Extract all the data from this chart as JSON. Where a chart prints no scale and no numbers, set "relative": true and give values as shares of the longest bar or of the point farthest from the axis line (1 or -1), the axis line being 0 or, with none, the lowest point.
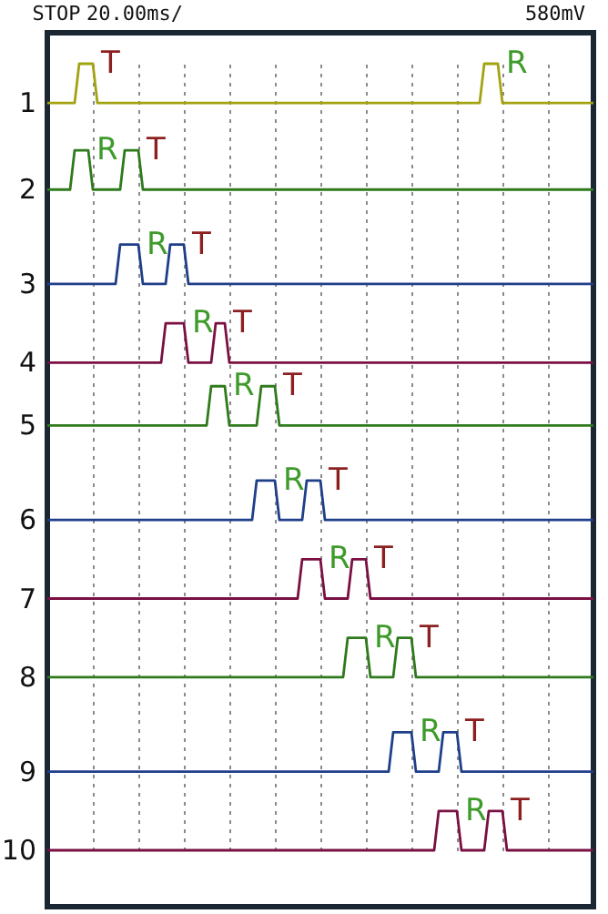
{
  "chart_data": {
    "type": "line",
    "relative": true,
    "grid": "x",
    "line_style": "solid",
    "categories": [
      null,
      null,
      null,
      null,
      null,
      null,
      null,
      null,
      null,
      null,
      null,
      null,
      null,
      null,
      null,
      null,
      null,
      null,
      null,
      null,
      null,
      null,
      null,
      null,
      null,
      null,
      null,
      null,
      null,
      null,
      null,
      null,
      null,
      null,
      null,
      null,
      null,
      null,
      null,
      null,
      null,
      null,
      null,
      null,
      null,
      null,
      null,
      null,
      null,
      null,
      null,
      null,
      null,
      null,
      null,
      null,
      null,
      null,
      null,
      null,
      null,
      null,
      null,
      null,
      null,
      null,
      null,
      null,
      null,
      null,
      null,
      null,
      null,
      null,
      null,
      null,
      null,
      null,
      null,
      null,
      null,
      null,
      null,
      null,
      null,
      null,
      null,
      null,
      null,
      null,
      null,
      null,
      null,
      null,
      null,
      null,
      null,
      null,
      null,
      null,
      null,
      null,
      null,
      null,
      null,
      null,
      null,
      null,
      null,
      null,
      null,
      null,
      null,
      null,
      null,
      null,
      null,
      null,
      null,
      null,
      null
    ],
    "series": [
      {
        "name": "1",
        "color": "#a3a312",
        "values": [
          0.95,
          0.95,
          0.95,
          0.95,
          0.95,
          0.95,
          0.95,
          1.0,
          1.0,
          1.0,
          1.0,
          0.95,
          0.95,
          0.95,
          0.95,
          0.95,
          0.95,
          0.95,
          0.95,
          0.95,
          0.95,
          0.95,
          0.95,
          0.95,
          0.95,
          0.95,
          0.95,
          0.95,
          0.95,
          0.95,
          0.95,
          0.95,
          0.95,
          0.95,
          0.95,
          0.95,
          0.95,
          0.95,
          0.95,
          0.95,
          0.95,
          0.95,
          0.95,
          0.95,
          0.95,
          0.95,
          0.95,
          0.95,
          0.95,
          0.95,
          0.95,
          0.95,
          0.95,
          0.95,
          0.95,
          0.95,
          0.95,
          0.95,
          0.95,
          0.95,
          0.95,
          0.95,
          0.95,
          0.95,
          0.95,
          0.95,
          0.95,
          0.95,
          0.95,
          0.95,
          0.95,
          0.95,
          0.95,
          0.95,
          0.95,
          0.95,
          0.95,
          0.95,
          0.95,
          0.95,
          0.95,
          0.95,
          0.95,
          0.95,
          0.95,
          0.95,
          0.95,
          0.95,
          0.95,
          0.95,
          0.95,
          0.95,
          0.95,
          0.95,
          0.95,
          0.95,
          1.0,
          1.0,
          1.0,
          1.0,
          0.95,
          0.95,
          0.95,
          0.95,
          0.95,
          0.95,
          0.95,
          0.95,
          0.95,
          0.95,
          0.95,
          0.95,
          0.95,
          0.95,
          0.95,
          0.95,
          0.95,
          0.95,
          0.95,
          0.95,
          0.95
        ]
      },
      {
        "name": "2",
        "color": "#2f7a1c",
        "values": [
          0.84,
          0.84,
          0.84,
          0.84,
          0.84,
          0.84,
          0.89,
          0.89,
          0.89,
          0.89,
          0.84,
          0.84,
          0.84,
          0.84,
          0.84,
          0.84,
          0.84,
          0.89,
          0.89,
          0.89,
          0.89,
          0.84,
          0.84,
          0.84,
          0.84,
          0.84,
          0.84,
          0.84,
          0.84,
          0.84,
          0.84,
          0.84,
          0.84,
          0.84,
          0.84,
          0.84,
          0.84,
          0.84,
          0.84,
          0.84,
          0.84,
          0.84,
          0.84,
          0.84,
          0.84,
          0.84,
          0.84,
          0.84,
          0.84,
          0.84,
          0.84,
          0.84,
          0.84,
          0.84,
          0.84,
          0.84,
          0.84,
          0.84,
          0.84,
          0.84,
          0.84,
          0.84,
          0.84,
          0.84,
          0.84,
          0.84,
          0.84,
          0.84,
          0.84,
          0.84,
          0.84,
          0.84,
          0.84,
          0.84,
          0.84,
          0.84,
          0.84,
          0.84,
          0.84,
          0.84,
          0.84,
          0.84,
          0.84,
          0.84,
          0.84,
          0.84,
          0.84,
          0.84,
          0.84,
          0.84,
          0.84,
          0.84,
          0.84,
          0.84,
          0.84,
          0.84,
          0.84,
          0.84,
          0.84,
          0.84,
          0.84,
          0.84,
          0.84,
          0.84,
          0.84,
          0.84,
          0.84,
          0.84,
          0.84,
          0.84,
          0.84,
          0.84,
          0.84,
          0.84,
          0.84,
          0.84,
          0.84,
          0.84,
          0.84,
          0.84,
          0.84
        ]
      },
      {
        "name": "3",
        "color": "#1f3f8a",
        "values": [
          0.72,
          0.72,
          0.72,
          0.72,
          0.72,
          0.72,
          0.72,
          0.72,
          0.72,
          0.72,
          0.72,
          0.72,
          0.72,
          0.72,
          0.72,
          0.72,
          0.77,
          0.77,
          0.77,
          0.77,
          0.77,
          0.72,
          0.72,
          0.72,
          0.72,
          0.72,
          0.72,
          0.77,
          0.77,
          0.77,
          0.77,
          0.72,
          0.72,
          0.72,
          0.72,
          0.72,
          0.72,
          0.72,
          0.72,
          0.72,
          0.72,
          0.72,
          0.72,
          0.72,
          0.72,
          0.72,
          0.72,
          0.72,
          0.72,
          0.72,
          0.72,
          0.72,
          0.72,
          0.72,
          0.72,
          0.72,
          0.72,
          0.72,
          0.72,
          0.72,
          0.72,
          0.72,
          0.72,
          0.72,
          0.72,
          0.72,
          0.72,
          0.72,
          0.72,
          0.72,
          0.72,
          0.72,
          0.72,
          0.72,
          0.72,
          0.72,
          0.72,
          0.72,
          0.72,
          0.72,
          0.72,
          0.72,
          0.72,
          0.72,
          0.72,
          0.72,
          0.72,
          0.72,
          0.72,
          0.72,
          0.72,
          0.72,
          0.72,
          0.72,
          0.72,
          0.72,
          0.72,
          0.72,
          0.72,
          0.72,
          0.72,
          0.72,
          0.72,
          0.72,
          0.72,
          0.72,
          0.72,
          0.72,
          0.72,
          0.72,
          0.72,
          0.72,
          0.72,
          0.72,
          0.72,
          0.72,
          0.72,
          0.72,
          0.72,
          0.72,
          0.72
        ]
      },
      {
        "name": "4",
        "color": "#7a1042",
        "values": [
          0.62,
          0.62,
          0.62,
          0.62,
          0.62,
          0.62,
          0.62,
          0.62,
          0.62,
          0.62,
          0.62,
          0.62,
          0.62,
          0.62,
          0.62,
          0.62,
          0.62,
          0.62,
          0.62,
          0.62,
          0.62,
          0.62,
          0.62,
          0.62,
          0.62,
          0.62,
          0.67,
          0.67,
          0.67,
          0.67,
          0.67,
          0.62,
          0.62,
          0.62,
          0.62,
          0.62,
          0.62,
          0.67,
          0.67,
          0.67,
          0.62,
          0.62,
          0.62,
          0.62,
          0.62,
          0.62,
          0.62,
          0.62,
          0.62,
          0.62,
          0.62,
          0.62,
          0.62,
          0.62,
          0.62,
          0.62,
          0.62,
          0.62,
          0.62,
          0.62,
          0.62,
          0.62,
          0.62,
          0.62,
          0.62,
          0.62,
          0.62,
          0.62,
          0.62,
          0.62,
          0.62,
          0.62,
          0.62,
          0.62,
          0.62,
          0.62,
          0.62,
          0.62,
          0.62,
          0.62,
          0.62,
          0.62,
          0.62,
          0.62,
          0.62,
          0.62,
          0.62,
          0.62,
          0.62,
          0.62,
          0.62,
          0.62,
          0.62,
          0.62,
          0.62,
          0.62,
          0.62,
          0.62,
          0.62,
          0.62,
          0.62,
          0.62,
          0.62,
          0.62,
          0.62,
          0.62,
          0.62,
          0.62,
          0.62,
          0.62,
          0.62,
          0.62,
          0.62,
          0.62,
          0.62,
          0.62,
          0.62,
          0.62,
          0.62,
          0.62,
          0.62
        ]
      },
      {
        "name": "5",
        "color": "#2f7a1c",
        "values": [
          0.54,
          0.54,
          0.54,
          0.54,
          0.54,
          0.54,
          0.54,
          0.54,
          0.54,
          0.54,
          0.54,
          0.54,
          0.54,
          0.54,
          0.54,
          0.54,
          0.54,
          0.54,
          0.54,
          0.54,
          0.54,
          0.54,
          0.54,
          0.54,
          0.54,
          0.54,
          0.54,
          0.54,
          0.54,
          0.54,
          0.54,
          0.54,
          0.54,
          0.54,
          0.54,
          0.54,
          0.59,
          0.59,
          0.59,
          0.59,
          0.54,
          0.54,
          0.54,
          0.54,
          0.54,
          0.54,
          0.54,
          0.59,
          0.59,
          0.59,
          0.59,
          0.54,
          0.54,
          0.54,
          0.54,
          0.54,
          0.54,
          0.54,
          0.54,
          0.54,
          0.54,
          0.54,
          0.54,
          0.54,
          0.54,
          0.54,
          0.54,
          0.54,
          0.54,
          0.54,
          0.54,
          0.54,
          0.54,
          0.54,
          0.54,
          0.54,
          0.54,
          0.54,
          0.54,
          0.54,
          0.54,
          0.54,
          0.54,
          0.54,
          0.54,
          0.54,
          0.54,
          0.54,
          0.54,
          0.54,
          0.54,
          0.54,
          0.54,
          0.54,
          0.54,
          0.54,
          0.54,
          0.54,
          0.54,
          0.54,
          0.54,
          0.54,
          0.54,
          0.54,
          0.54,
          0.54,
          0.54,
          0.54,
          0.54,
          0.54,
          0.54,
          0.54,
          0.54,
          0.54,
          0.54,
          0.54,
          0.54,
          0.54,
          0.54,
          0.54,
          0.54
        ]
      },
      {
        "name": "6",
        "color": "#1f3f8a",
        "values": [
          0.42,
          0.42,
          0.42,
          0.42,
          0.42,
          0.42,
          0.42,
          0.42,
          0.42,
          0.42,
          0.42,
          0.42,
          0.42,
          0.42,
          0.42,
          0.42,
          0.42,
          0.42,
          0.42,
          0.42,
          0.42,
          0.42,
          0.42,
          0.42,
          0.42,
          0.42,
          0.42,
          0.42,
          0.42,
          0.42,
          0.42,
          0.42,
          0.42,
          0.42,
          0.42,
          0.42,
          0.42,
          0.42,
          0.42,
          0.42,
          0.42,
          0.42,
          0.42,
          0.42,
          0.42,
          0.42,
          0.47,
          0.47,
          0.47,
          0.47,
          0.47,
          0.42,
          0.42,
          0.42,
          0.42,
          0.42,
          0.42,
          0.47,
          0.47,
          0.47,
          0.47,
          0.42,
          0.42,
          0.42,
          0.42,
          0.42,
          0.42,
          0.42,
          0.42,
          0.42,
          0.42,
          0.42,
          0.42,
          0.42,
          0.42,
          0.42,
          0.42,
          0.42,
          0.42,
          0.42,
          0.42,
          0.42,
          0.42,
          0.42,
          0.42,
          0.42,
          0.42,
          0.42,
          0.42,
          0.42,
          0.42,
          0.42,
          0.42,
          0.42,
          0.42,
          0.42,
          0.42,
          0.42,
          0.42,
          0.42,
          0.42,
          0.42,
          0.42,
          0.42,
          0.42,
          0.42,
          0.42,
          0.42,
          0.42,
          0.42,
          0.42,
          0.42,
          0.42,
          0.42,
          0.42,
          0.42,
          0.42,
          0.42,
          0.42,
          0.42,
          0.42
        ]
      },
      {
        "name": "7",
        "color": "#7a1042",
        "values": [
          0.32,
          0.32,
          0.32,
          0.32,
          0.32,
          0.32,
          0.32,
          0.32,
          0.32,
          0.32,
          0.32,
          0.32,
          0.32,
          0.32,
          0.32,
          0.32,
          0.32,
          0.32,
          0.32,
          0.32,
          0.32,
          0.32,
          0.32,
          0.32,
          0.32,
          0.32,
          0.32,
          0.32,
          0.32,
          0.32,
          0.32,
          0.32,
          0.32,
          0.32,
          0.32,
          0.32,
          0.32,
          0.32,
          0.32,
          0.32,
          0.32,
          0.32,
          0.32,
          0.32,
          0.32,
          0.32,
          0.32,
          0.32,
          0.32,
          0.32,
          0.32,
          0.32,
          0.32,
          0.32,
          0.32,
          0.32,
          0.37,
          0.37,
          0.37,
          0.37,
          0.37,
          0.32,
          0.32,
          0.32,
          0.32,
          0.32,
          0.32,
          0.37,
          0.37,
          0.37,
          0.37,
          0.32,
          0.32,
          0.32,
          0.32,
          0.32,
          0.32,
          0.32,
          0.32,
          0.32,
          0.32,
          0.32,
          0.32,
          0.32,
          0.32,
          0.32,
          0.32,
          0.32,
          0.32,
          0.32,
          0.32,
          0.32,
          0.32,
          0.32,
          0.32,
          0.32,
          0.32,
          0.32,
          0.32,
          0.32,
          0.32,
          0.32,
          0.32,
          0.32,
          0.32,
          0.32,
          0.32,
          0.32,
          0.32,
          0.32,
          0.32,
          0.32,
          0.32,
          0.32,
          0.32,
          0.32,
          0.32,
          0.32,
          0.32,
          0.32,
          0.32
        ]
      },
      {
        "name": "8",
        "color": "#2f7a1c",
        "values": [
          0.22,
          0.22,
          0.22,
          0.22,
          0.22,
          0.22,
          0.22,
          0.22,
          0.22,
          0.22,
          0.22,
          0.22,
          0.22,
          0.22,
          0.22,
          0.22,
          0.22,
          0.22,
          0.22,
          0.22,
          0.22,
          0.22,
          0.22,
          0.22,
          0.22,
          0.22,
          0.22,
          0.22,
          0.22,
          0.22,
          0.22,
          0.22,
          0.22,
          0.22,
          0.22,
          0.22,
          0.22,
          0.22,
          0.22,
          0.22,
          0.22,
          0.22,
          0.22,
          0.22,
          0.22,
          0.22,
          0.22,
          0.22,
          0.22,
          0.22,
          0.22,
          0.22,
          0.22,
          0.22,
          0.22,
          0.22,
          0.22,
          0.22,
          0.22,
          0.22,
          0.22,
          0.22,
          0.22,
          0.22,
          0.22,
          0.22,
          0.27,
          0.27,
          0.27,
          0.27,
          0.27,
          0.22,
          0.22,
          0.22,
          0.22,
          0.22,
          0.22,
          0.27,
          0.27,
          0.27,
          0.27,
          0.22,
          0.22,
          0.22,
          0.22,
          0.22,
          0.22,
          0.22,
          0.22,
          0.22,
          0.22,
          0.22,
          0.22,
          0.22,
          0.22,
          0.22,
          0.22,
          0.22,
          0.22,
          0.22,
          0.22,
          0.22,
          0.22,
          0.22,
          0.22,
          0.22,
          0.22,
          0.22,
          0.22,
          0.22,
          0.22,
          0.22,
          0.22,
          0.22,
          0.22,
          0.22,
          0.22,
          0.22,
          0.22,
          0.22,
          0.22
        ]
      },
      {
        "name": "9",
        "color": "#1f3f8a",
        "values": [
          0.1,
          0.1,
          0.1,
          0.1,
          0.1,
          0.1,
          0.1,
          0.1,
          0.1,
          0.1,
          0.1,
          0.1,
          0.1,
          0.1,
          0.1,
          0.1,
          0.1,
          0.1,
          0.1,
          0.1,
          0.1,
          0.1,
          0.1,
          0.1,
          0.1,
          0.1,
          0.1,
          0.1,
          0.1,
          0.1,
          0.1,
          0.1,
          0.1,
          0.1,
          0.1,
          0.1,
          0.1,
          0.1,
          0.1,
          0.1,
          0.1,
          0.1,
          0.1,
          0.1,
          0.1,
          0.1,
          0.1,
          0.1,
          0.1,
          0.1,
          0.1,
          0.1,
          0.1,
          0.1,
          0.1,
          0.1,
          0.1,
          0.1,
          0.1,
          0.1,
          0.1,
          0.1,
          0.1,
          0.1,
          0.1,
          0.1,
          0.1,
          0.1,
          0.1,
          0.1,
          0.1,
          0.1,
          0.1,
          0.1,
          0.1,
          0.1,
          0.15,
          0.15,
          0.15,
          0.15,
          0.15,
          0.1,
          0.1,
          0.1,
          0.1,
          0.1,
          0.1,
          0.15,
          0.15,
          0.15,
          0.15,
          0.1,
          0.1,
          0.1,
          0.1,
          0.1,
          0.1,
          0.1,
          0.1,
          0.1,
          0.1,
          0.1,
          0.1,
          0.1,
          0.1,
          0.1,
          0.1,
          0.1,
          0.1,
          0.1,
          0.1,
          0.1,
          0.1,
          0.1,
          0.1,
          0.1,
          0.1,
          0.1,
          0.1,
          0.1,
          0.1
        ]
      },
      {
        "name": "10",
        "color": "#7a1042",
        "values": [
          0.0,
          0.0,
          0.0,
          0.0,
          0.0,
          0.0,
          0.0,
          0.0,
          0.0,
          0.0,
          0.0,
          0.0,
          0.0,
          0.0,
          0.0,
          0.0,
          0.0,
          0.0,
          0.0,
          0.0,
          0.0,
          0.0,
          0.0,
          0.0,
          0.0,
          0.0,
          0.0,
          0.0,
          0.0,
          0.0,
          0.0,
          0.0,
          0.0,
          0.0,
          0.0,
          0.0,
          0.0,
          0.0,
          0.0,
          0.0,
          0.0,
          0.0,
          0.0,
          0.0,
          0.0,
          0.0,
          0.0,
          0.0,
          0.0,
          0.0,
          0.0,
          0.0,
          0.0,
          0.0,
          0.0,
          0.0,
          0.0,
          0.0,
          0.0,
          0.0,
          0.0,
          0.0,
          0.0,
          0.0,
          0.0,
          0.0,
          0.0,
          0.0,
          0.0,
          0.0,
          0.0,
          0.0,
          0.0,
          0.0,
          0.0,
          0.0,
          0.0,
          0.0,
          0.0,
          0.0,
          0.0,
          0.0,
          0.0,
          0.0,
          0.0,
          0.0,
          0.05,
          0.05,
          0.05,
          0.05,
          0.05,
          0.0,
          0.0,
          0.0,
          0.0,
          0.0,
          0.0,
          0.05,
          0.05,
          0.05,
          0.05,
          0.0,
          0.0,
          0.0,
          0.0,
          0.0,
          0.0,
          0.0,
          0.0,
          0.0,
          0.0,
          0.0,
          0.0,
          0.0,
          0.0,
          0.0,
          0.0,
          0.0,
          0.0,
          0.0,
          0.0
        ]
      }
    ],
    "annotations": [
      "STOP",
      "20.00ms/",
      "580mV",
      "T",
      "R",
      "R",
      "T",
      "R",
      "T",
      "R",
      "T",
      "R",
      "T",
      "R",
      "T",
      "R",
      "T",
      "R",
      "T",
      "R",
      "T",
      "R",
      "T"
    ]
  }
}
